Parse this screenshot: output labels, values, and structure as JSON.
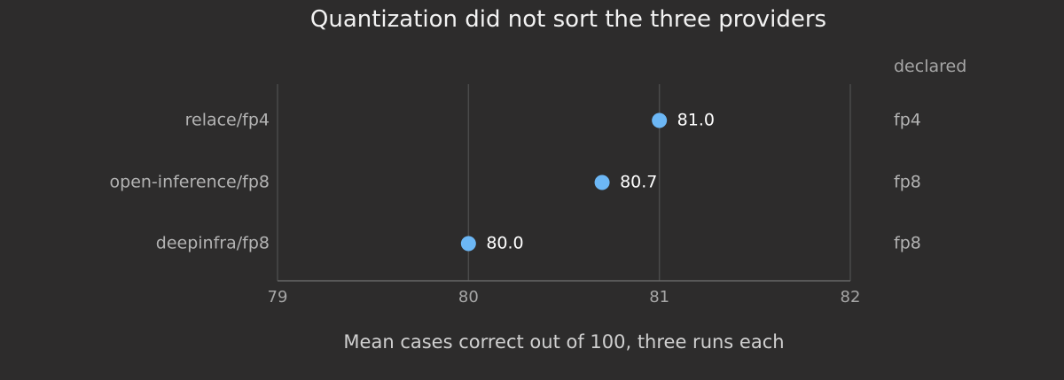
{
  "chart_data": {
    "type": "scatter",
    "title": "Quantization did not sort the three providers",
    "xlabel": "Mean cases correct out of 100, three runs each",
    "ylabel": "",
    "xlim": [
      79,
      82
    ],
    "xticks": [
      "79",
      "80",
      "81",
      "82"
    ],
    "grid": "vertical gridlines at each x tick",
    "categories": [
      "relace/fp4",
      "open-inference/fp8",
      "deepinfra/fp8"
    ],
    "values": [
      81.0,
      80.7,
      80.0
    ],
    "value_labels": [
      "81.0",
      "80.7",
      "80.0"
    ],
    "side_column": {
      "header": "declared",
      "values": [
        "fp4",
        "fp8",
        "fp8"
      ]
    },
    "colors": {
      "background": "#2d2c2c",
      "point": "#6cb7f5",
      "grid": "#4a4a4a",
      "axis": "#666666"
    }
  }
}
